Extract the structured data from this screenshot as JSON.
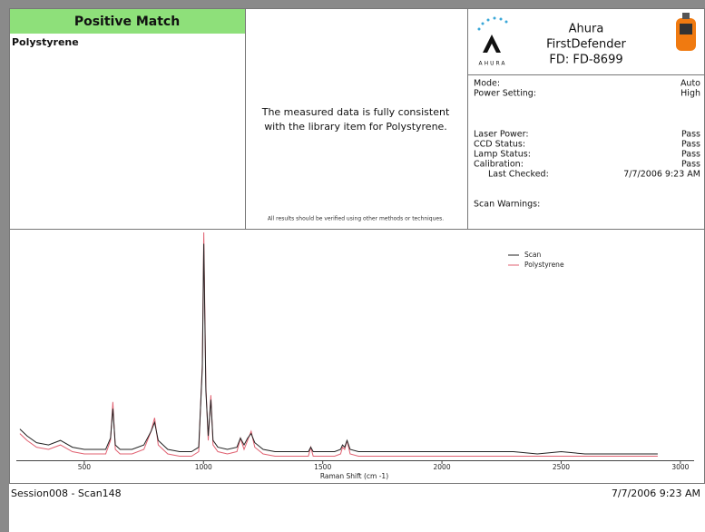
{
  "header": {
    "status": "Positive Match",
    "match_item": "Polystyrene",
    "message_lines": [
      "The measured data is fully consistent",
      "with the library item for Polystyrene."
    ],
    "disclaimer": "All results should be verified using other methods or techniques.",
    "device": {
      "brand": "AHURA",
      "name_lines": [
        "Ahura",
        "FirstDefender",
        "FD: FD-8699"
      ]
    },
    "settings": [
      {
        "label": "Mode:",
        "value": "Auto"
      },
      {
        "label": "Power Setting:",
        "value": "High"
      }
    ],
    "statuses": [
      {
        "label": "Laser Power:",
        "value": "Pass"
      },
      {
        "label": "CCD Status:",
        "value": "Pass"
      },
      {
        "label": "Lamp Status:",
        "value": "Pass"
      },
      {
        "label": "Calibration:",
        "value": "Pass"
      },
      {
        "label": "Last Checked:",
        "value": "7/7/2006 9:23 AM"
      }
    ],
    "warnings_label": "Scan Warnings:"
  },
  "chart_data": {
    "type": "line",
    "x_label": "Raman Shift (cm -1)",
    "x": [
      230,
      260,
      300,
      350,
      400,
      450,
      500,
      550,
      590,
      610,
      620,
      630,
      650,
      700,
      750,
      780,
      795,
      810,
      850,
      900,
      950,
      980,
      995,
      1001,
      1010,
      1020,
      1031,
      1040,
      1060,
      1100,
      1140,
      1155,
      1170,
      1185,
      1200,
      1215,
      1250,
      1300,
      1350,
      1400,
      1440,
      1450,
      1460,
      1500,
      1550,
      1575,
      1583,
      1592,
      1602,
      1615,
      1650,
      1700,
      1800,
      1900,
      2000,
      2100,
      2200,
      2300,
      2400,
      2500,
      2600,
      2700,
      2800,
      2905
    ],
    "series": [
      {
        "name": "Scan",
        "color": "#222222",
        "values": [
          13,
          10,
          7,
          6,
          8,
          5,
          4,
          4,
          4,
          9,
          22,
          6,
          4,
          4,
          6,
          12,
          16,
          8,
          4,
          3,
          3,
          5,
          40,
          95,
          30,
          10,
          26,
          8,
          5,
          4,
          5,
          9,
          6,
          9,
          11,
          7,
          4,
          3,
          3,
          3,
          3,
          5,
          3,
          3,
          3,
          4,
          6,
          5,
          8,
          4,
          3,
          3,
          3,
          3,
          3,
          3,
          3,
          3,
          2,
          3,
          2,
          2,
          2,
          2
        ]
      },
      {
        "name": "Polystyrene",
        "color": "#e06070",
        "values": [
          11,
          8,
          5,
          4,
          6,
          3,
          2,
          2,
          2,
          8,
          25,
          4,
          2,
          2,
          4,
          12,
          18,
          6,
          2,
          1,
          1,
          3,
          42,
          100,
          32,
          8,
          28,
          6,
          3,
          2,
          3,
          9,
          4,
          8,
          12,
          5,
          2,
          1,
          1,
          1,
          1,
          5,
          1,
          1,
          1,
          2,
          5,
          4,
          8,
          2,
          1,
          1,
          1,
          1,
          1,
          1,
          1,
          1,
          1,
          1,
          1,
          1,
          1,
          1
        ]
      }
    ],
    "xlim": [
      215,
      3050
    ],
    "ylim": [
      0,
      100
    ],
    "xticks": [
      500,
      1000,
      1500,
      2000,
      2500,
      3000
    ],
    "legend": "top-right"
  },
  "footer": {
    "session": "Session008 - Scan148",
    "timestamp": "7/7/2006 9:23 AM"
  }
}
